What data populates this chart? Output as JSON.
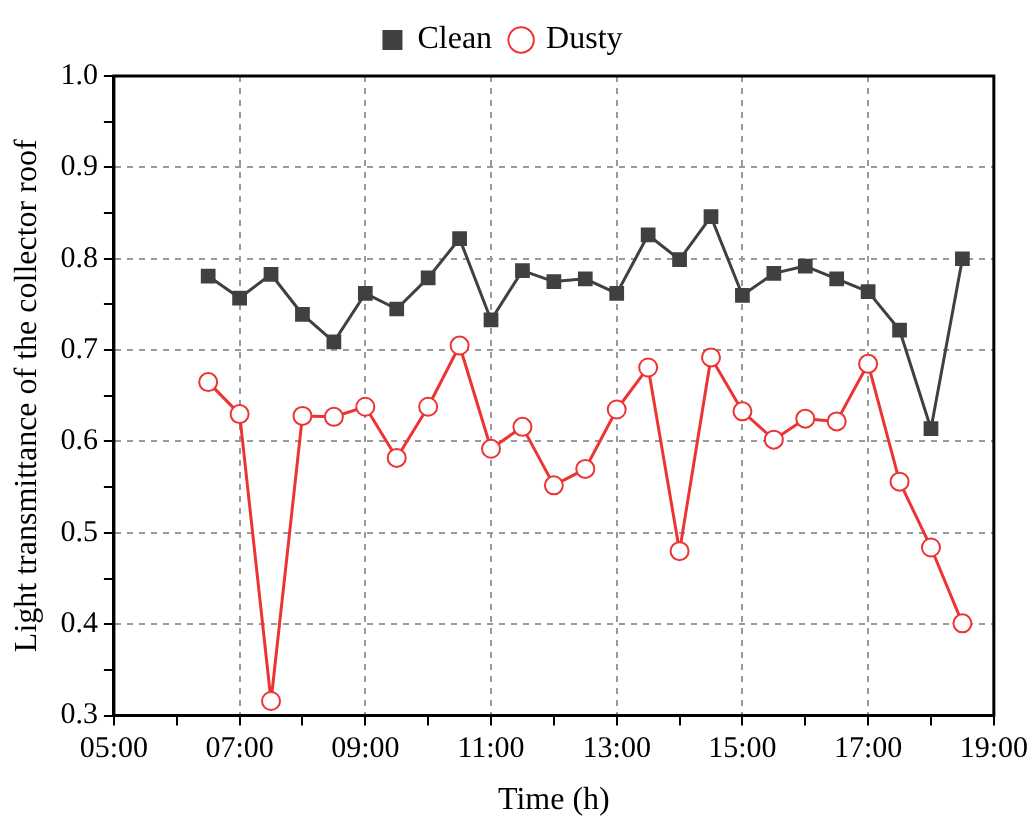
{
  "chart_data": {
    "type": "line",
    "xlabel": "Time (h)",
    "ylabel": "Light transmittance of the collector roof",
    "x": [
      6.5,
      7,
      7.5,
      8,
      8.5,
      9,
      9.5,
      10,
      10.5,
      11,
      11.5,
      12,
      12.5,
      13,
      13.5,
      14,
      14.5,
      15,
      15.5,
      16,
      16.5,
      17,
      17.5,
      18,
      18.5
    ],
    "series": [
      {
        "name": "Clean",
        "color": "#404040",
        "marker": "square",
        "values": [
          0.781,
          0.757,
          0.783,
          0.739,
          0.709,
          0.762,
          0.745,
          0.779,
          0.822,
          0.733,
          0.787,
          0.775,
          0.778,
          0.762,
          0.826,
          0.799,
          0.846,
          0.76,
          0.784,
          0.792,
          0.778,
          0.764,
          0.722,
          0.614,
          0.8
        ]
      },
      {
        "name": "Dusty",
        "color": "#ee3333",
        "marker": "circle",
        "values": [
          0.665,
          0.63,
          0.316,
          0.628,
          0.627,
          0.638,
          0.582,
          0.638,
          0.705,
          0.592,
          0.616,
          0.552,
          0.57,
          0.635,
          0.681,
          0.48,
          0.692,
          0.633,
          0.602,
          0.625,
          0.622,
          0.685,
          0.556,
          0.484,
          0.401
        ]
      }
    ],
    "xlim": [
      5,
      19
    ],
    "xticks": [
      {
        "value": 5,
        "label": "05:00"
      },
      {
        "value": 6,
        "label": null
      },
      {
        "value": 7,
        "label": "07:00"
      },
      {
        "value": 8,
        "label": null
      },
      {
        "value": 9,
        "label": "09:00"
      },
      {
        "value": 10,
        "label": null
      },
      {
        "value": 11,
        "label": "11:00"
      },
      {
        "value": 12,
        "label": null
      },
      {
        "value": 13,
        "label": "13:00"
      },
      {
        "value": 14,
        "label": null
      },
      {
        "value": 15,
        "label": "15:00"
      },
      {
        "value": 16,
        "label": null
      },
      {
        "value": 17,
        "label": "17:00"
      },
      {
        "value": 18,
        "label": null
      },
      {
        "value": 19,
        "label": "19:00"
      }
    ],
    "ylim": [
      0.3,
      1.0
    ],
    "yticks": [
      {
        "value": 0.3,
        "label": "0.3"
      },
      {
        "value": 0.35,
        "label": null
      },
      {
        "value": 0.4,
        "label": "0.4"
      },
      {
        "value": 0.45,
        "label": null
      },
      {
        "value": 0.5,
        "label": "0.5"
      },
      {
        "value": 0.55,
        "label": null
      },
      {
        "value": 0.6,
        "label": "0.6"
      },
      {
        "value": 0.65,
        "label": null
      },
      {
        "value": 0.7,
        "label": "0.7"
      },
      {
        "value": 0.75,
        "label": null
      },
      {
        "value": 0.8,
        "label": "0.8"
      },
      {
        "value": 0.85,
        "label": null
      },
      {
        "value": 0.9,
        "label": "0.9"
      },
      {
        "value": 0.95,
        "label": null
      },
      {
        "value": 1.0,
        "label": "1.0"
      }
    ],
    "grid": true,
    "legend": "top",
    "line_style": "solid"
  }
}
